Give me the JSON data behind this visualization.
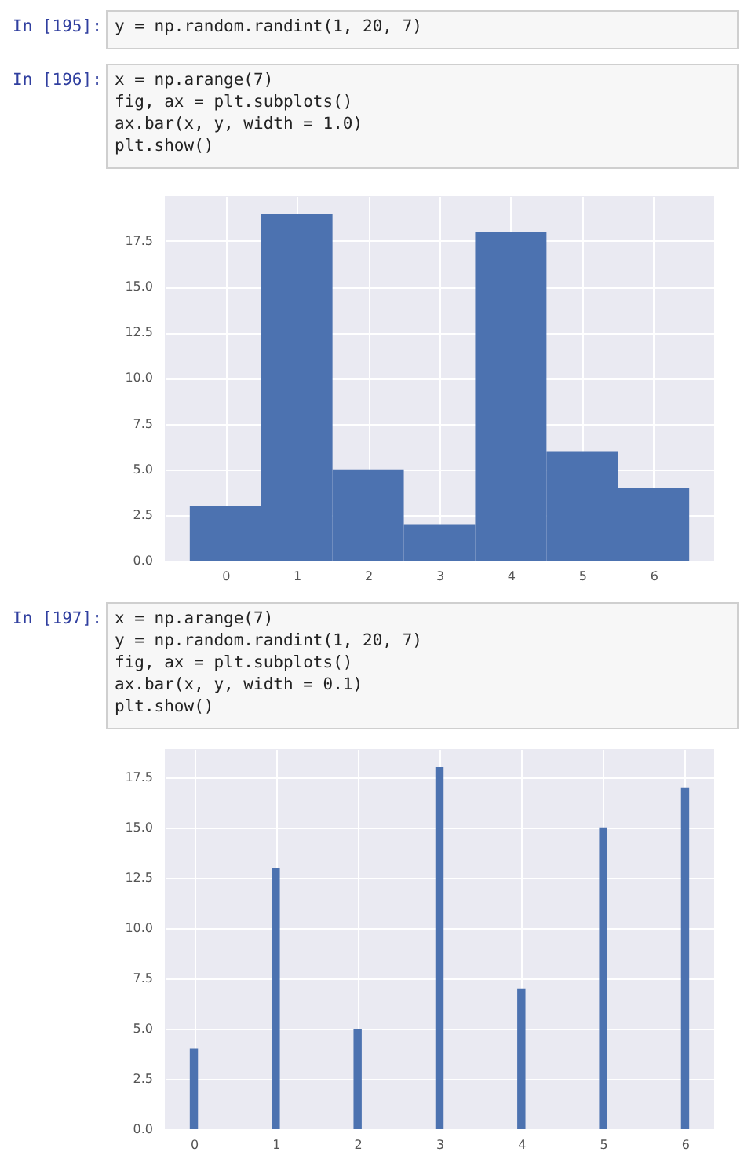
{
  "chart_data": [
    {
      "type": "bar",
      "x": [
        0,
        1,
        2,
        3,
        4,
        5,
        6
      ],
      "values": [
        3,
        19,
        5,
        2,
        18,
        6,
        4
      ],
      "color": "#4c72b0",
      "xlim": [
        -0.85,
        6.85
      ],
      "xticks": [
        0,
        1,
        2,
        3,
        4,
        5,
        6
      ],
      "ylim": [
        0,
        19.95
      ],
      "yticks": [
        {
          "value": 0,
          "label": "0.0"
        },
        2.5,
        {
          "value": 5,
          "label": "5.0"
        },
        7.5,
        {
          "value": 10,
          "label": "10.0"
        },
        12.5,
        {
          "value": 15,
          "label": "15.0"
        },
        17.5
      ],
      "grid": true,
      "annotations": [
        "In [195]:",
        "y = np.random.randint(1, 20, 7)",
        "In [196]:",
        "x = np.arange(7)\nfig, ax = plt.subplots()\nax.bar(x, y, width = 1.0)\nplt.show()"
      ]
    },
    {
      "type": "bar",
      "x": [
        0,
        1,
        2,
        3,
        4,
        5,
        6
      ],
      "values": [
        4,
        13,
        5,
        18,
        7,
        15,
        17
      ],
      "color": "#4c72b0",
      "xlim": [
        -0.355,
        6.355
      ],
      "xticks": [
        0,
        1,
        2,
        3,
        4,
        5,
        6
      ],
      "ylim": [
        0,
        18.9
      ],
      "yticks": [
        {
          "value": 0,
          "label": "0.0"
        },
        2.5,
        {
          "value": 5,
          "label": "5.0"
        },
        7.5,
        {
          "value": 10,
          "label": "10.0"
        },
        12.5,
        {
          "value": 15,
          "label": "15.0"
        },
        17.5
      ],
      "grid": true,
      "annotations": [
        "In [197]:",
        "x = np.arange(7)\ny = np.random.randint(1, 20, 7)\nfig, ax = plt.subplots()\nax.bar(x, y, width = 0.1)\nplt.show()"
      ]
    }
  ]
}
